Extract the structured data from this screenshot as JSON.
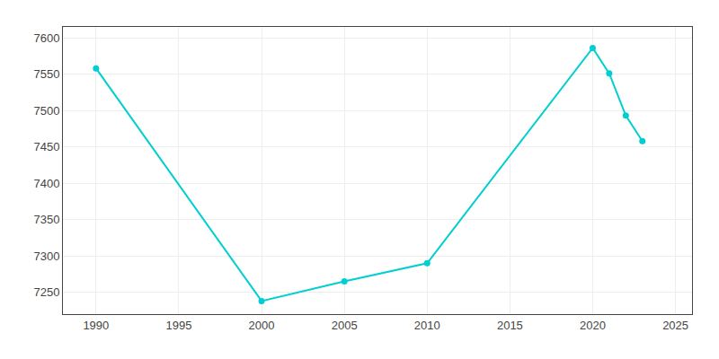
{
  "chart_data": {
    "type": "line",
    "x": [
      1990,
      2000,
      2005,
      2010,
      2020,
      2021,
      2022,
      2023
    ],
    "values": [
      7558,
      7238,
      7265,
      7290,
      7586,
      7551,
      7493,
      7458
    ],
    "color": "#00CED1",
    "marker": "circle",
    "xlim": [
      1988,
      2026
    ],
    "ylim": [
      7220,
      7615
    ],
    "xticks": [
      1990,
      1995,
      2000,
      2005,
      2010,
      2015,
      2020,
      2025
    ],
    "yticks": [
      7250,
      7300,
      7350,
      7400,
      7450,
      7500,
      7550,
      7600
    ],
    "grid": true
  }
}
